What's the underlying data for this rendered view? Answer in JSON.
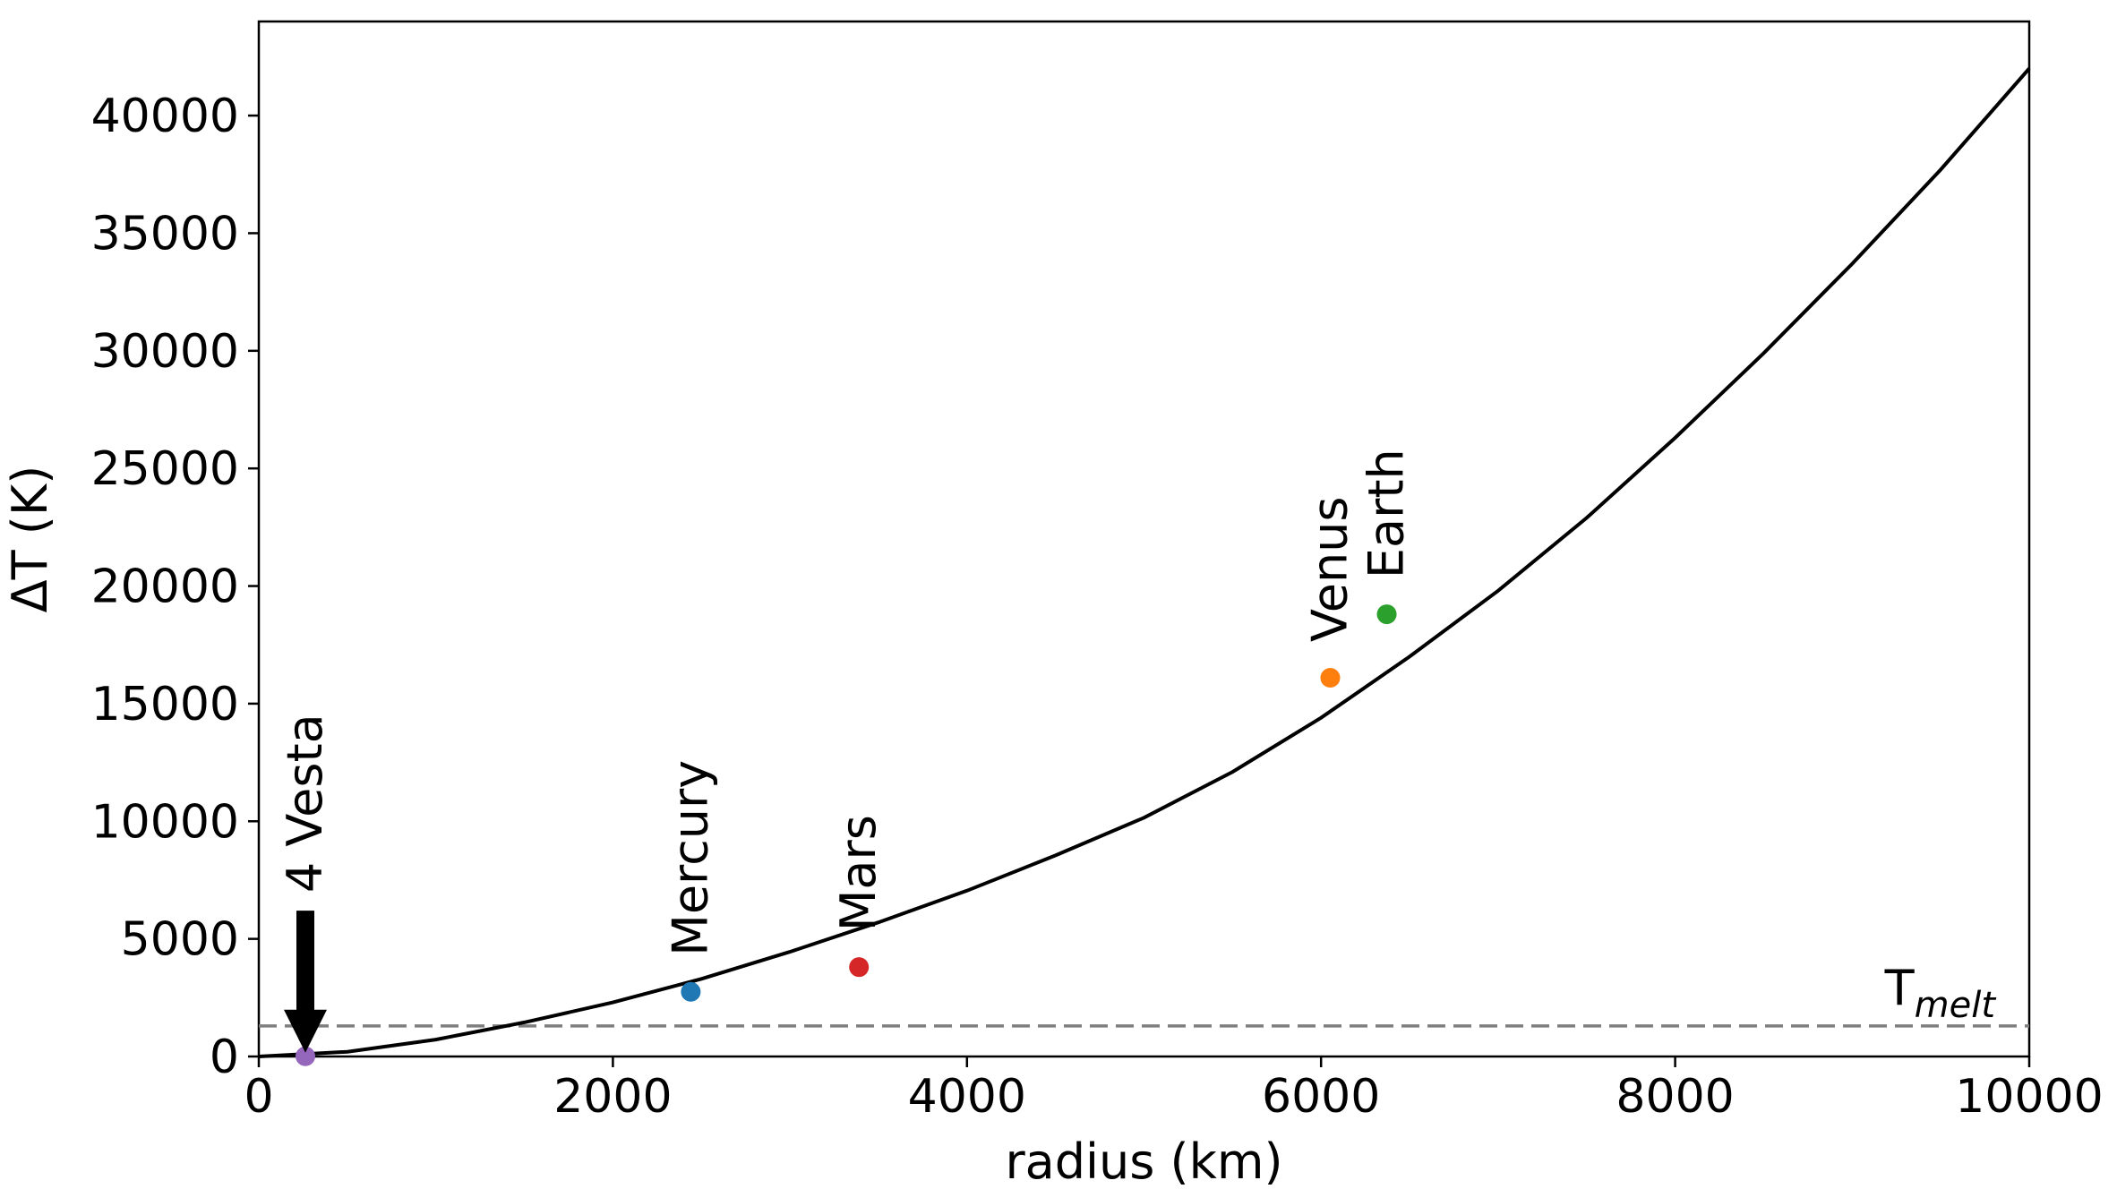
{
  "chart_data": {
    "type": "line",
    "xlabel": "radius (km)",
    "ylabel": "ΔT (K)",
    "xlim": [
      0,
      10000
    ],
    "ylim": [
      0,
      44000
    ],
    "xticks": [
      0,
      2000,
      4000,
      6000,
      8000,
      10000
    ],
    "yticks": [
      0,
      5000,
      10000,
      15000,
      20000,
      25000,
      30000,
      35000,
      40000
    ],
    "grid": false,
    "series": [
      {
        "kind": "curve",
        "color": "#000000",
        "x": [
          0,
          500,
          1000,
          1500,
          2000,
          2500,
          3000,
          3500,
          4000,
          4500,
          5000,
          5500,
          6000,
          6500,
          7000,
          7500,
          8000,
          8500,
          9000,
          9500,
          10000
        ],
        "y": [
          0,
          200,
          720,
          1450,
          2300,
          3300,
          4450,
          5700,
          7050,
          8550,
          10150,
          12100,
          14400,
          17000,
          19800,
          22900,
          26300,
          29900,
          33700,
          37700,
          42000
        ]
      }
    ],
    "reference_line": {
      "y": 1300,
      "style": "dashed",
      "color": "#7f7f7f",
      "label_main": "T",
      "label_sub": "melt"
    },
    "points": [
      {
        "name": "4 Vesta",
        "x": 263,
        "y": 10,
        "color": "#9467bd"
      },
      {
        "name": "Mercury",
        "x": 2440,
        "y": 2750,
        "color": "#1f77b4"
      },
      {
        "name": "Mars",
        "x": 3390,
        "y": 3800,
        "color": "#d62728"
      },
      {
        "name": "Venus",
        "x": 6052,
        "y": 16100,
        "color": "#ff7f0e"
      },
      {
        "name": "Earth",
        "x": 6371,
        "y": 18800,
        "color": "#2ca02c"
      }
    ],
    "arrow": {
      "target": "4 Vesta",
      "color": "#000000"
    }
  }
}
